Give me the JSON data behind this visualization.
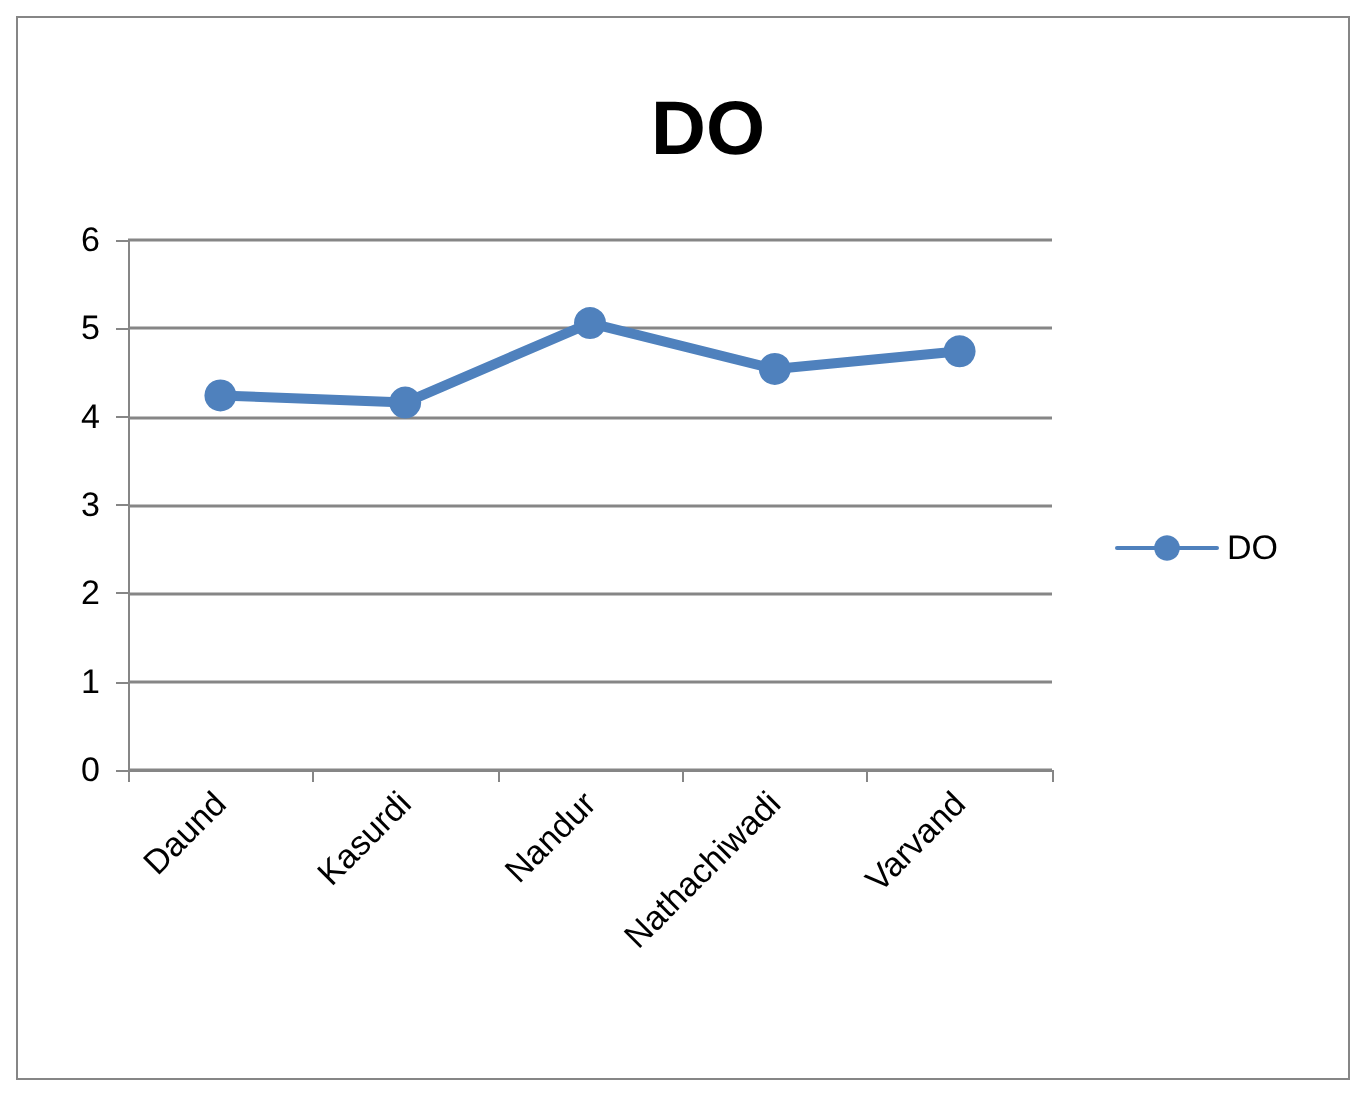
{
  "chart_data": {
    "type": "line",
    "title": "DO",
    "categories": [
      "Daund",
      "Kasurdi",
      "Nandur",
      "Nathachiwadi",
      "Varvand"
    ],
    "series": [
      {
        "name": "DO",
        "color": "#4f81bd",
        "values": [
          4.24,
          4.16,
          5.06,
          4.54,
          4.74
        ]
      }
    ],
    "ylim": [
      0,
      6
    ],
    "yticks": [
      0,
      1,
      2,
      3,
      4,
      5,
      6
    ],
    "grid": "y",
    "legend": "right",
    "marker": "circle",
    "line_style": "solid"
  }
}
